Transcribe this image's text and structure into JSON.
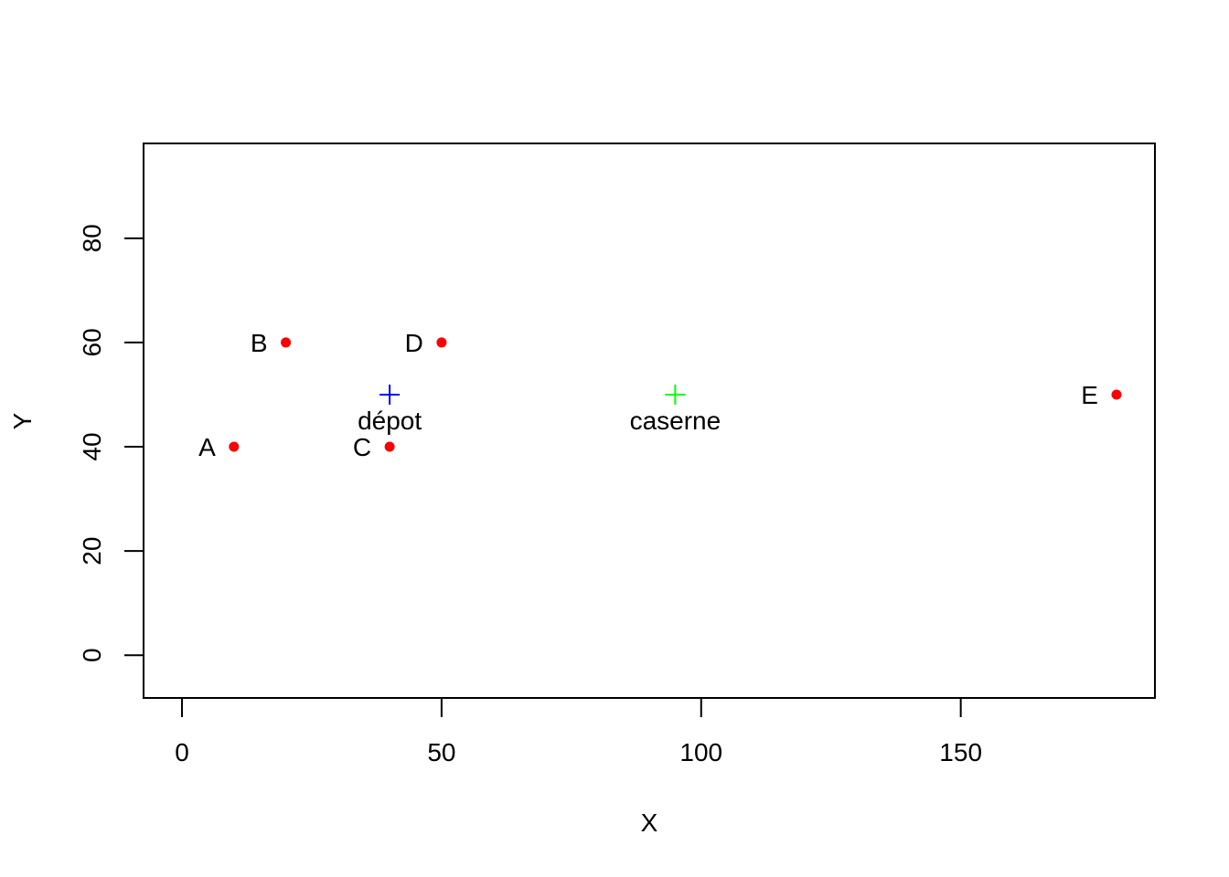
{
  "chart_data": {
    "type": "scatter",
    "title": "",
    "xlabel": "X",
    "ylabel": "Y",
    "xlim": [
      -7.4,
      187.4
    ],
    "ylim": [
      -8.2,
      98.2
    ],
    "x_ticks": [
      0,
      50,
      100,
      150
    ],
    "y_ticks": [
      0,
      20,
      40,
      60,
      80
    ],
    "x_tick_labels": [
      "0",
      "50",
      "100",
      "150"
    ],
    "y_tick_labels": [
      "0",
      "20",
      "40",
      "60",
      "80"
    ],
    "grid": false,
    "series": [
      {
        "marker": "filled-circle",
        "color": "#ff0000",
        "label_position": "left",
        "points": [
          {
            "label": "A",
            "x": 10,
            "y": 40
          },
          {
            "label": "B",
            "x": 20,
            "y": 60
          },
          {
            "label": "C",
            "x": 40,
            "y": 40
          },
          {
            "label": "D",
            "x": 50,
            "y": 60
          },
          {
            "label": "E",
            "x": 180,
            "y": 50
          }
        ]
      },
      {
        "marker": "plus",
        "color": "#0000ff",
        "label_position": "below",
        "points": [
          {
            "label": "dépot",
            "x": 40,
            "y": 50
          }
        ]
      },
      {
        "marker": "plus",
        "color": "#00ff00",
        "label_position": "below",
        "points": [
          {
            "label": "caserne",
            "x": 95,
            "y": 50
          }
        ]
      }
    ]
  }
}
